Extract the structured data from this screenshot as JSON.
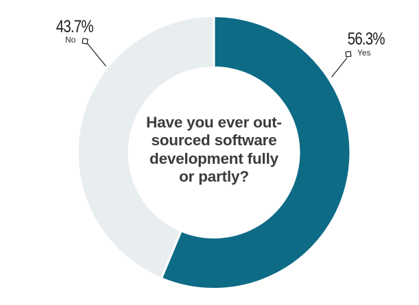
{
  "chart_data": {
    "type": "pie",
    "subtype": "donut",
    "title": "Have you ever out-sourced software development fully or partly?",
    "title_display": "Have you ever out-\nsourced software\ndevelopment fully\nor partly?",
    "categories": [
      "Yes",
      "No"
    ],
    "values": [
      56.3,
      43.7
    ],
    "data_labels": [
      "56.3%",
      "43.7%"
    ],
    "slice_colors": [
      "#0d6b86",
      "#e8edf0"
    ],
    "start_angle_deg": 0,
    "direction": "clockwise",
    "inner_radius_ratio": 0.623,
    "hole_fill": "#ffffff",
    "slice_gap_stroke": "#ffffff",
    "legend_position": "none",
    "label_style": "outside-callout",
    "background": "#ffffff",
    "center_text_color": "#3b3b3b",
    "callout_line_color": "#1a1a1a"
  }
}
